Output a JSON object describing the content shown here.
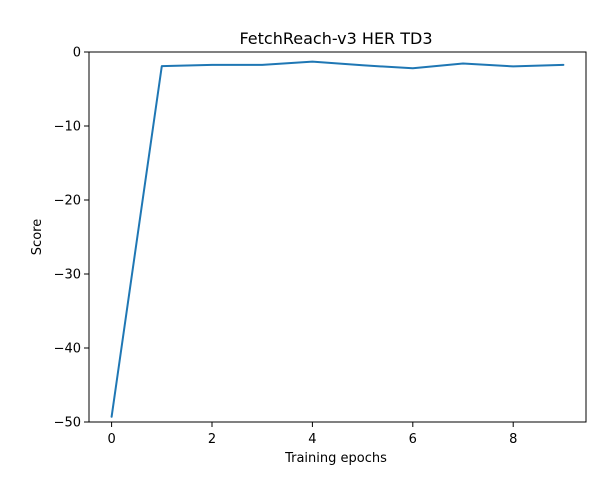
{
  "chart_data": {
    "type": "line",
    "title": "FetchReach-v3 HER TD3",
    "xlabel": "Training epochs",
    "ylabel": "Score",
    "xlim": [
      -0.45,
      9.45
    ],
    "ylim": [
      -50,
      0
    ],
    "xticks": [
      0,
      2,
      4,
      6,
      8
    ],
    "yticks": [
      0,
      -10,
      -20,
      -30,
      -40,
      -50
    ],
    "ytick_labels": [
      "0",
      "−10",
      "−20",
      "−30",
      "−40",
      "−50"
    ],
    "grid": false,
    "series": [
      {
        "color": "#1f77b4",
        "x": [
          0,
          1,
          2,
          3,
          4,
          5,
          6,
          7,
          8,
          9
        ],
        "y": [
          -49.3,
          -1.9,
          -1.75,
          -1.75,
          -1.3,
          -1.8,
          -2.2,
          -1.55,
          -1.95,
          -1.75
        ]
      }
    ]
  }
}
